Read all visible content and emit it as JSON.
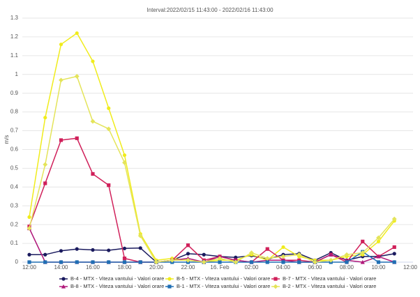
{
  "chart_data": {
    "type": "line",
    "title": "Interval:2022/02/15 11:43:00 - 2022/02/16 11:43:00",
    "ylabel": "m/s",
    "categories": [
      "12:00",
      null,
      "14:00",
      null,
      "16:00",
      null,
      "18:00",
      null,
      "20:00",
      null,
      "22:00",
      null,
      "16. Feb",
      null,
      "02:00",
      null,
      "04:00",
      null,
      "06:00",
      null,
      "08:00",
      null,
      "10:00",
      null,
      "12:00"
    ],
    "ylim": [
      0,
      1.3
    ],
    "yticks": [
      0,
      0.1,
      0.2,
      0.3,
      0.4,
      0.5,
      0.6,
      0.7,
      0.8,
      0.9,
      1,
      1.1,
      1.2,
      1.3
    ],
    "grid": true,
    "legend": "bottom",
    "series": [
      {
        "name": "B-4 - MTX - Viteza vantului - Valori orare",
        "color": "#1a1a5e",
        "marker": "circle",
        "values": [
          0.04,
          0.04,
          0.06,
          0.07,
          0.065,
          0.063,
          0.073,
          0.075,
          0.0,
          0.01,
          0.045,
          0.04,
          0.03,
          0.025,
          0.035,
          0.015,
          0.04,
          0.045,
          0.01,
          0.05,
          0.01,
          0.03,
          0.03,
          0.045,
          null
        ]
      },
      {
        "name": "B-5 - MTX - Viteza vantului - Valori orare",
        "color": "#f0ec1c",
        "marker": "circle",
        "values": [
          0.24,
          0.77,
          1.16,
          1.22,
          1.07,
          0.82,
          0.57,
          0.15,
          0.01,
          0.02,
          0.01,
          0.0,
          0.01,
          0.01,
          0.04,
          0.01,
          0.08,
          0.03,
          0.01,
          0.01,
          0.03,
          0.04,
          0.11,
          0.22,
          null
        ]
      },
      {
        "name": "B-7 - MTX - Viteza vantului - Valori orare",
        "color": "#d0205a",
        "marker": "square",
        "values": [
          0.19,
          0.42,
          0.65,
          0.66,
          0.47,
          0.41,
          0.02,
          0.0,
          0.0,
          0.01,
          0.09,
          0.01,
          0.03,
          0.01,
          0.0,
          0.07,
          0.01,
          0.01,
          0.0,
          0.04,
          0.0,
          0.11,
          0.03,
          0.08,
          null
        ]
      },
      {
        "name": "B-8 - MTX - Viteza vantului - Valori orare",
        "color": "#b0187a",
        "marker": "triangle",
        "values": [
          0.18,
          0.0,
          0.0,
          0.0,
          0.0,
          0.0,
          0.0,
          0.0,
          0.0,
          0.01,
          0.02,
          0.0,
          0.03,
          0.01,
          0.0,
          0.01,
          0.01,
          0.0,
          0.0,
          0.04,
          0.01,
          0.0,
          0.03,
          0.0,
          null
        ]
      },
      {
        "name": "B-1 - MTX - Viteza vantului - Valori orare",
        "color": "#1f6fb4",
        "marker": "square",
        "values": [
          0.0,
          0.0,
          0.0,
          0.0,
          0.0,
          0.0,
          0.0,
          0.0,
          0.0,
          0.0,
          0.0,
          0.0,
          0.0,
          0.0,
          0.0,
          0.0,
          0.0,
          0.0,
          0.0,
          0.0,
          0.0,
          0.055,
          0.0,
          0.0,
          null
        ]
      },
      {
        "name": "B-2 - MTX - Viteza vantului - Valori orare",
        "color": "#e4e45a",
        "marker": "diamond",
        "values": [
          0.18,
          0.52,
          0.97,
          0.99,
          0.75,
          0.71,
          0.53,
          0.14,
          0.0,
          0.01,
          0.01,
          0.0,
          0.02,
          0.0,
          0.05,
          0.02,
          0.03,
          0.04,
          0.0,
          0.01,
          0.04,
          0.05,
          0.13,
          0.23,
          null
        ]
      }
    ]
  }
}
